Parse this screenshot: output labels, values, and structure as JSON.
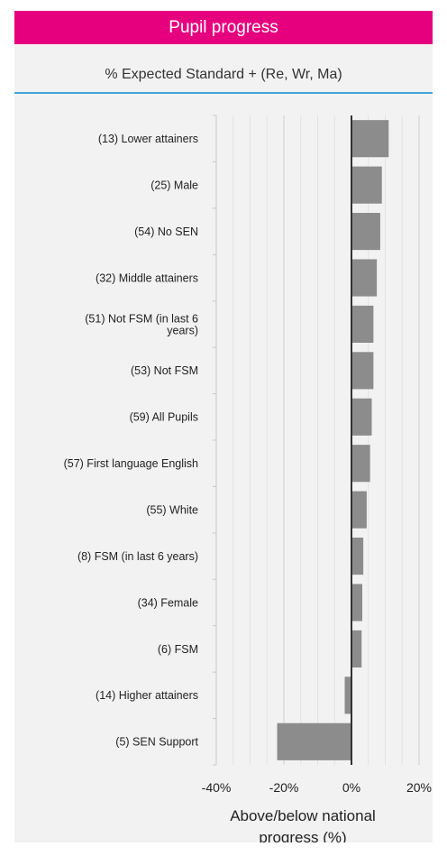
{
  "header": {
    "title": "Pupil progress"
  },
  "subtitle": "% Expected Standard + (Re, Wr, Ma)",
  "colors": {
    "header_bg": "#e6007e",
    "rule": "#3ea4d8",
    "bar": "#8c8c8c",
    "panel_bg": "#f2f2f2"
  },
  "chart_data": {
    "type": "bar",
    "orientation": "horizontal",
    "categories": [
      "(13) Lower attainers",
      "(25) Male",
      "(54) No SEN",
      "(32) Middle attainers",
      [
        "(51) Not FSM (in last 6",
        "years)"
      ],
      "(53) Not FSM",
      "(59) All Pupils",
      "(57) First language English",
      "(55) White",
      "(8) FSM (in last 6 years)",
      "(34) Female",
      "(6) FSM",
      "(14) Higher attainers",
      "(5) SEN Support"
    ],
    "values": [
      11,
      9,
      8.5,
      7.5,
      6.5,
      6.5,
      6,
      5.5,
      4.5,
      3.5,
      3.2,
      3,
      -2,
      -22
    ],
    "xlim": [
      -40,
      20
    ],
    "xticks": [
      -40,
      -20,
      0,
      20
    ],
    "xtick_labels": [
      "-40%",
      "-20%",
      "0%",
      "20%"
    ],
    "xlabel": [
      "Above/below national",
      "progress (%)"
    ],
    "ylabel": "",
    "grid": true,
    "legend": "none"
  }
}
